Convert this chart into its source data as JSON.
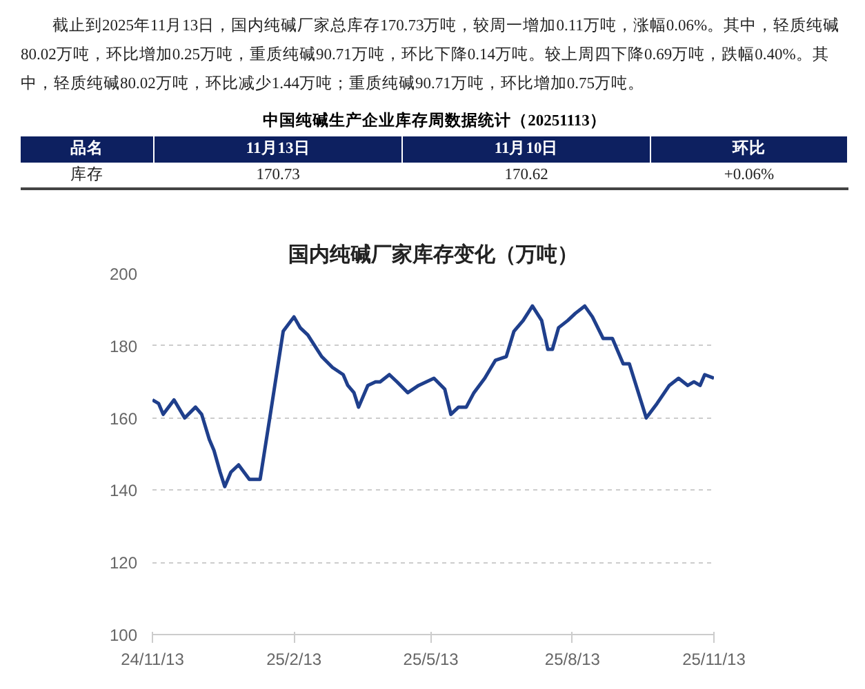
{
  "chart_data": {
    "type": "line",
    "title": "国内纯碱厂家库存变化（万吨）",
    "annotations": [
      "截止到2025年11月13日，国内纯碱厂家总库存170.73万吨，较周一增加0.11万吨，涨幅0.06%。其中，轻质纯碱80.02万吨，环比增加0.25万吨，重质纯碱90.71万吨，环比下降0.14万吨。较上周四下降0.69万吨，跌幅0.40%。其中，轻质纯碱80.02万吨，环比减少1.44万吨；重质纯碱90.71万吨，环比增加0.75万吨。",
      "中国纯碱生产企业库存周数据统计（20251113）",
      "品名",
      "11月13日",
      "11月10日",
      "环比",
      "库存",
      "170.73",
      "170.62",
      "+0.06%"
    ],
    "x": [
      "2024-11-13",
      "2024-11-17",
      "2024-11-20",
      "2024-11-27",
      "2024-12-04",
      "2024-12-11",
      "2024-12-15",
      "2024-12-20",
      "2024-12-23",
      "2024-12-27",
      "2024-12-30",
      "2025-01-03",
      "2025-01-08",
      "2025-01-15",
      "2025-01-22",
      "2025-01-29",
      "2025-02-06",
      "2025-02-13",
      "2025-02-17",
      "2025-02-22",
      "2025-03-03",
      "2025-03-10",
      "2025-03-17",
      "2025-03-20",
      "2025-03-24",
      "2025-03-27",
      "2025-04-02",
      "2025-04-07",
      "2025-04-10",
      "2025-04-16",
      "2025-04-21",
      "2025-04-28",
      "2025-05-05",
      "2025-05-10",
      "2025-05-15",
      "2025-05-22",
      "2025-05-26",
      "2025-05-31",
      "2025-06-05",
      "2025-06-10",
      "2025-06-17",
      "2025-06-24",
      "2025-07-01",
      "2025-07-06",
      "2025-07-12",
      "2025-07-18",
      "2025-07-24",
      "2025-07-28",
      "2025-07-31",
      "2025-08-04",
      "2025-08-10",
      "2025-08-15",
      "2025-08-21",
      "2025-08-26",
      "2025-09-02",
      "2025-09-08",
      "2025-09-15",
      "2025-09-19",
      "2025-09-30",
      "2025-10-07",
      "2025-10-15",
      "2025-10-21",
      "2025-10-27",
      "2025-10-31",
      "2025-11-04",
      "2025-11-07",
      "2025-11-13"
    ],
    "series": [
      {
        "color": "#1f3f8c",
        "values": [
          165,
          164,
          161,
          165,
          160,
          163,
          161,
          154,
          151,
          145,
          141,
          145,
          147,
          143,
          143,
          162,
          184,
          188,
          185,
          183,
          177,
          174,
          172,
          169,
          167,
          163,
          169,
          170,
          170,
          172,
          170,
          167,
          169,
          170,
          171,
          168,
          161,
          163,
          163,
          167,
          171,
          176,
          177,
          184,
          187,
          191,
          187,
          179,
          179,
          185,
          187,
          189,
          191,
          188,
          182,
          182,
          175,
          175,
          160,
          164,
          169,
          171,
          169,
          170,
          169,
          172,
          171
        ]
      }
    ],
    "xlim": [
      "2024-11-13",
      "2025-11-13"
    ],
    "xticks": [
      {
        "value": "2024-11-13",
        "label": "24/11/13"
      },
      {
        "value": "2025-02-13",
        "label": "25/2/13"
      },
      {
        "value": "2025-05-13",
        "label": "25/5/13"
      },
      {
        "value": "2025-08-13",
        "label": "25/8/13"
      },
      {
        "value": "2025-11-13",
        "label": "25/11/13"
      }
    ],
    "ylim": [
      100,
      200
    ],
    "yticks": [
      100,
      120,
      140,
      160,
      180,
      200
    ],
    "grid": "y",
    "marker": "none",
    "line_style": "solid"
  }
}
